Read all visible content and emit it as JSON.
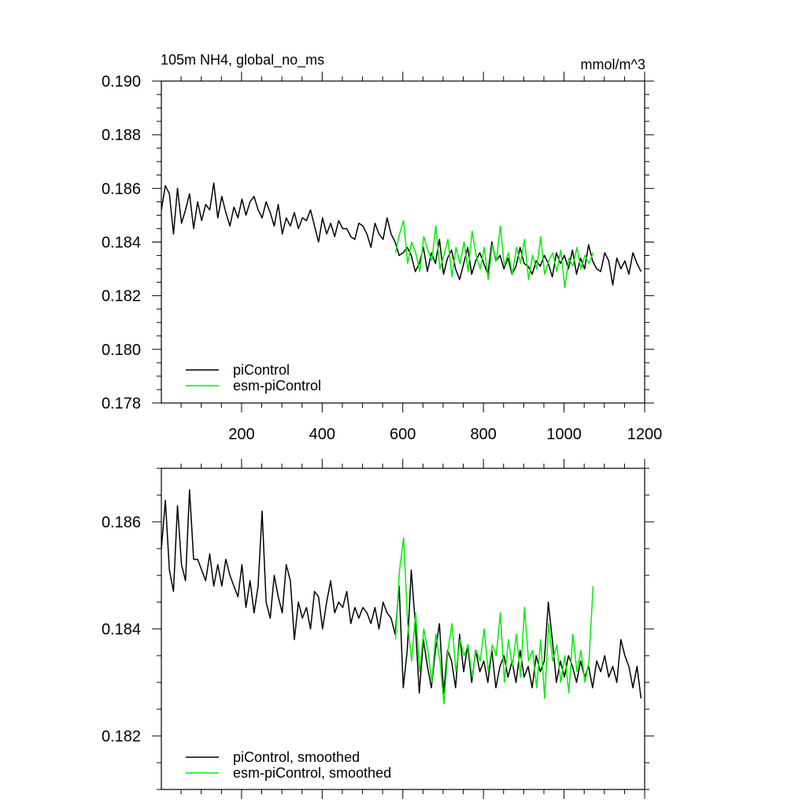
{
  "chart_data": [
    {
      "type": "line",
      "title": "105m NH4, global_no_ms",
      "units": "mmol/m^3",
      "xlim": [
        1,
        1200
      ],
      "ylim": [
        0.178,
        0.19
      ],
      "xticks": [
        200,
        400,
        600,
        800,
        1000,
        1200
      ],
      "xtick_labels": [
        "200",
        "400",
        "600",
        "800",
        "1000",
        "1200"
      ],
      "yticks": [
        0.178,
        0.18,
        0.182,
        0.184,
        0.186,
        0.188,
        0.19
      ],
      "ytick_labels": [
        "0.178",
        "0.180",
        "0.182",
        "0.184",
        "0.186",
        "0.188",
        "0.190"
      ],
      "legend_position": "bottom-left",
      "legend": [
        {
          "label": "piControl",
          "color": "#000000"
        },
        {
          "label": "esm-piControl",
          "color": "#00ee00"
        }
      ],
      "series": [
        {
          "name": "piControl",
          "color": "#000000",
          "x_start": 1,
          "x_step": 10,
          "values": [
            0.1852,
            0.1861,
            0.1858,
            0.1843,
            0.186,
            0.1847,
            0.1852,
            0.1858,
            0.1845,
            0.1855,
            0.1848,
            0.1854,
            0.1852,
            0.1862,
            0.1849,
            0.1857,
            0.1851,
            0.1846,
            0.1853,
            0.1849,
            0.1856,
            0.185,
            0.1855,
            0.1857,
            0.1852,
            0.1849,
            0.1855,
            0.1851,
            0.1846,
            0.1854,
            0.1843,
            0.1849,
            0.1846,
            0.1851,
            0.1845,
            0.1849,
            0.1848,
            0.1852,
            0.1846,
            0.184,
            0.1849,
            0.1843,
            0.1847,
            0.1842,
            0.1848,
            0.1845,
            0.1845,
            0.1842,
            0.1841,
            0.1847,
            0.1846,
            0.1843,
            0.1838,
            0.1847,
            0.1843,
            0.1841,
            0.1849,
            0.1843,
            0.184,
            0.1835,
            0.1836,
            0.1838,
            0.1835,
            0.1829,
            0.1832,
            0.1838,
            0.1829,
            0.1836,
            0.1832,
            0.1841,
            0.1828,
            0.1834,
            0.1837,
            0.183,
            0.1826,
            0.1832,
            0.1838,
            0.1828,
            0.1833,
            0.1836,
            0.1832,
            0.1828,
            0.184,
            0.1833,
            0.1835,
            0.183,
            0.1834,
            0.1828,
            0.1831,
            0.1838,
            0.1832,
            0.1831,
            0.1828,
            0.1833,
            0.1831,
            0.1835,
            0.1832,
            0.1827,
            0.1836,
            0.1832,
            0.1835,
            0.183,
            0.1837,
            0.1828,
            0.1834,
            0.183,
            0.1839,
            0.1833,
            0.183,
            0.1829,
            0.1836,
            0.1833,
            0.1824,
            0.1834,
            0.183,
            0.1833,
            0.1828,
            0.1836,
            0.1832,
            0.1829
          ]
        },
        {
          "name": "esm-piControl",
          "color": "#00ee00",
          "x_start": 582,
          "x_step": 10,
          "values": [
            0.1836,
            0.1843,
            0.1848,
            0.1832,
            0.184,
            0.1836,
            0.1829,
            0.1842,
            0.1837,
            0.1833,
            0.1846,
            0.183,
            0.1835,
            0.1841,
            0.1827,
            0.1838,
            0.1832,
            0.184,
            0.1829,
            0.1844,
            0.1835,
            0.183,
            0.1838,
            0.1826,
            0.1839,
            0.1833,
            0.1846,
            0.1831,
            0.1836,
            0.1828,
            0.1838,
            0.1832,
            0.1841,
            0.1826,
            0.1835,
            0.183,
            0.1842,
            0.1828,
            0.1833,
            0.1836,
            0.1829,
            0.1837,
            0.1823,
            0.1834,
            0.1831,
            0.1838,
            0.183,
            0.1835,
            0.1832,
            0.1836
          ]
        }
      ]
    },
    {
      "type": "line",
      "title": "",
      "units": "",
      "xlim": [
        1,
        1200
      ],
      "ylim": [
        0.181,
        0.187
      ],
      "xticks": [
        200,
        400,
        600,
        800,
        1000,
        1200
      ],
      "xtick_labels": [],
      "yticks": [
        0.182,
        0.184,
        0.186
      ],
      "ytick_labels": [
        "0.182",
        "0.184",
        "0.186"
      ],
      "legend_position": "bottom-left",
      "legend": [
        {
          "label": "piControl, smoothed",
          "color": "#000000"
        },
        {
          "label": "esm-piControl, smoothed",
          "color": "#00ee00"
        }
      ],
      "series": [
        {
          "name": "piControl, smoothed",
          "color": "#000000",
          "x_start": 1,
          "x_step": 10,
          "values": [
            0.1855,
            0.1864,
            0.1851,
            0.1847,
            0.1863,
            0.1852,
            0.1849,
            0.1866,
            0.1853,
            0.1853,
            0.1851,
            0.1849,
            0.1854,
            0.1848,
            0.1852,
            0.1848,
            0.1853,
            0.185,
            0.1848,
            0.1846,
            0.1852,
            0.1844,
            0.1849,
            0.1843,
            0.1848,
            0.1862,
            0.1845,
            0.1842,
            0.185,
            0.1846,
            0.1843,
            0.1852,
            0.1849,
            0.1838,
            0.1845,
            0.1842,
            0.1844,
            0.184,
            0.1847,
            0.1846,
            0.184,
            0.1845,
            0.1849,
            0.1843,
            0.1845,
            0.1844,
            0.1847,
            0.1841,
            0.1844,
            0.1842,
            0.1844,
            0.1843,
            0.1841,
            0.1844,
            0.184,
            0.1845,
            0.1843,
            0.1842,
            0.1839,
            0.1848,
            0.1829,
            0.1836,
            0.1851,
            0.1841,
            0.1828,
            0.1838,
            0.1833,
            0.1829,
            0.1836,
            0.1841,
            0.1828,
            0.1836,
            0.1834,
            0.1829,
            0.1839,
            0.1832,
            0.1837,
            0.183,
            0.1836,
            0.1832,
            0.1834,
            0.183,
            0.1836,
            0.1829,
            0.1833,
            0.1835,
            0.1831,
            0.1834,
            0.183,
            0.1836,
            0.1831,
            0.1833,
            0.1829,
            0.1835,
            0.1832,
            0.1834,
            0.1845,
            0.1838,
            0.183,
            0.1834,
            0.1831,
            0.1835,
            0.1833,
            0.183,
            0.1834,
            0.1831,
            0.1833,
            0.1829,
            0.1834,
            0.1832,
            0.1835,
            0.1831,
            0.1833,
            0.183,
            0.1838,
            0.1835,
            0.1833,
            0.1829,
            0.1833,
            0.1827
          ]
        },
        {
          "name": "esm-piControl, smoothed",
          "color": "#00ee00",
          "x_start": 582,
          "x_step": 10,
          "values": [
            0.1838,
            0.1851,
            0.1857,
            0.1841,
            0.1834,
            0.1843,
            0.1832,
            0.184,
            0.1836,
            0.183,
            0.1839,
            0.1834,
            0.1826,
            0.1836,
            0.1841,
            0.1832,
            0.1838,
            0.1835,
            0.1837,
            0.1831,
            0.1836,
            0.1834,
            0.184,
            0.1832,
            0.1837,
            0.1835,
            0.1843,
            0.183,
            0.1838,
            0.1833,
            0.1839,
            0.1831,
            0.1844,
            0.1834,
            0.1836,
            0.1829,
            0.1838,
            0.1827,
            0.1841,
            0.1834,
            0.1837,
            0.183,
            0.1835,
            0.1828,
            0.1839,
            0.1832,
            0.1836,
            0.183,
            0.1834,
            0.1848
          ]
        }
      ]
    }
  ]
}
